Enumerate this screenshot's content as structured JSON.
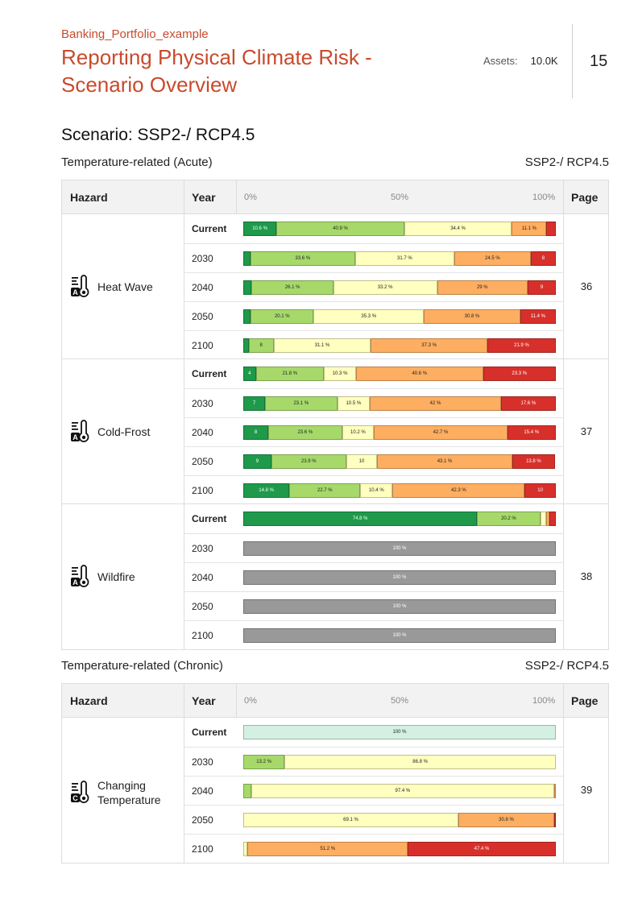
{
  "header": {
    "portfolio": "Banking_Portfolio_example",
    "title": "Reporting Physical Climate Risk - Scenario Overview",
    "assets_label": "Assets:",
    "assets_value": "10.0K",
    "page_number": "15"
  },
  "scenario_title": "Scenario: SSP2-/ RCP4.5",
  "colors": {
    "dg": "#1e9a4a",
    "lg": "#a6d96a",
    "ly": "#ffffbf",
    "or": "#fdae61",
    "rd": "#d7302b",
    "gr": "#999999",
    "mt": "#d4f0e2"
  },
  "columns": {
    "hazard": "Hazard",
    "year": "Year",
    "scale_0": "0%",
    "scale_50": "50%",
    "scale_100": "100%",
    "page": "Page"
  },
  "sections": [
    {
      "title": "Temperature-related (Acute)",
      "scenario": "SSP2-/ RCP4.5",
      "hazards": [
        {
          "name": "Heat Wave",
          "icon": "thermometer-a-icon",
          "page": "36",
          "rows": [
            {
              "year": "Current",
              "segments": [
                {
                  "c": "dg",
                  "v": 10.6,
                  "t": "10.6 %"
                },
                {
                  "c": "lg",
                  "v": 40.9,
                  "t": "40.9 %"
                },
                {
                  "c": "ly",
                  "v": 34.4,
                  "t": "34.4 %"
                },
                {
                  "c": "or",
                  "v": 11.1,
                  "t": "11.1 %"
                },
                {
                  "c": "rd",
                  "v": 3.0,
                  "t": ""
                }
              ]
            },
            {
              "year": "2030",
              "segments": [
                {
                  "c": "dg",
                  "v": 2.2,
                  "t": ""
                },
                {
                  "c": "lg",
                  "v": 33.6,
                  "t": "33.6 %"
                },
                {
                  "c": "ly",
                  "v": 31.7,
                  "t": "31.7 %"
                },
                {
                  "c": "or",
                  "v": 24.5,
                  "t": "24.5 %"
                },
                {
                  "c": "rd",
                  "v": 8.0,
                  "t": "8"
                }
              ]
            },
            {
              "year": "2040",
              "segments": [
                {
                  "c": "dg",
                  "v": 2.7,
                  "t": ""
                },
                {
                  "c": "lg",
                  "v": 26.1,
                  "t": "26.1 %"
                },
                {
                  "c": "ly",
                  "v": 33.2,
                  "t": "33.2 %"
                },
                {
                  "c": "or",
                  "v": 29.0,
                  "t": "29 %"
                },
                {
                  "c": "rd",
                  "v": 9.0,
                  "t": "9"
                }
              ]
            },
            {
              "year": "2050",
              "segments": [
                {
                  "c": "dg",
                  "v": 2.4,
                  "t": ""
                },
                {
                  "c": "lg",
                  "v": 20.1,
                  "t": "20.1 %"
                },
                {
                  "c": "ly",
                  "v": 35.3,
                  "t": "35.3 %"
                },
                {
                  "c": "or",
                  "v": 30.8,
                  "t": "30.8 %"
                },
                {
                  "c": "rd",
                  "v": 11.4,
                  "t": "11.4 %"
                }
              ]
            },
            {
              "year": "2100",
              "segments": [
                {
                  "c": "dg",
                  "v": 1.7,
                  "t": ""
                },
                {
                  "c": "lg",
                  "v": 8.0,
                  "t": "8"
                },
                {
                  "c": "ly",
                  "v": 31.1,
                  "t": "31.1 %"
                },
                {
                  "c": "or",
                  "v": 37.3,
                  "t": "37.3 %"
                },
                {
                  "c": "rd",
                  "v": 21.9,
                  "t": "21.9 %"
                }
              ]
            }
          ]
        },
        {
          "name": "Cold-Frost",
          "icon": "thermometer-a-icon",
          "page": "37",
          "rows": [
            {
              "year": "Current",
              "segments": [
                {
                  "c": "dg",
                  "v": 4.0,
                  "t": "4"
                },
                {
                  "c": "lg",
                  "v": 21.8,
                  "t": "21.8 %"
                },
                {
                  "c": "ly",
                  "v": 10.3,
                  "t": "10.3 %"
                },
                {
                  "c": "or",
                  "v": 40.6,
                  "t": "40.6 %"
                },
                {
                  "c": "rd",
                  "v": 23.3,
                  "t": "23.3 %"
                }
              ]
            },
            {
              "year": "2030",
              "segments": [
                {
                  "c": "dg",
                  "v": 7.0,
                  "t": "7"
                },
                {
                  "c": "lg",
                  "v": 23.1,
                  "t": "23.1 %"
                },
                {
                  "c": "ly",
                  "v": 10.5,
                  "t": "10.5 %"
                },
                {
                  "c": "or",
                  "v": 42.0,
                  "t": "42 %"
                },
                {
                  "c": "rd",
                  "v": 17.6,
                  "t": "17.6 %"
                }
              ]
            },
            {
              "year": "2040",
              "segments": [
                {
                  "c": "dg",
                  "v": 8.0,
                  "t": "8"
                },
                {
                  "c": "lg",
                  "v": 23.6,
                  "t": "23.6 %"
                },
                {
                  "c": "ly",
                  "v": 10.2,
                  "t": "10.2 %"
                },
                {
                  "c": "or",
                  "v": 42.7,
                  "t": "42.7 %"
                },
                {
                  "c": "rd",
                  "v": 15.4,
                  "t": "15.4 %"
                }
              ]
            },
            {
              "year": "2050",
              "segments": [
                {
                  "c": "dg",
                  "v": 9.0,
                  "t": "9"
                },
                {
                  "c": "lg",
                  "v": 23.9,
                  "t": "23.9 %"
                },
                {
                  "c": "ly",
                  "v": 10.0,
                  "t": "10"
                },
                {
                  "c": "or",
                  "v": 43.1,
                  "t": "43.1 %"
                },
                {
                  "c": "rd",
                  "v": 13.8,
                  "t": "13.8 %"
                }
              ]
            },
            {
              "year": "2100",
              "segments": [
                {
                  "c": "dg",
                  "v": 14.8,
                  "t": "14.8 %"
                },
                {
                  "c": "lg",
                  "v": 22.7,
                  "t": "22.7 %"
                },
                {
                  "c": "ly",
                  "v": 10.4,
                  "t": "10.4 %"
                },
                {
                  "c": "or",
                  "v": 42.3,
                  "t": "42.3 %"
                },
                {
                  "c": "rd",
                  "v": 10.0,
                  "t": "10"
                }
              ]
            }
          ]
        },
        {
          "name": "Wildfire",
          "icon": "thermometer-a-icon",
          "page": "38",
          "rows": [
            {
              "year": "Current",
              "segments": [
                {
                  "c": "dg",
                  "v": 74.8,
                  "t": "74.8 %"
                },
                {
                  "c": "lg",
                  "v": 20.2,
                  "t": "20.2 %"
                },
                {
                  "c": "ly",
                  "v": 2.0,
                  "t": ""
                },
                {
                  "c": "or",
                  "v": 1.0,
                  "t": ""
                },
                {
                  "c": "rd",
                  "v": 2.0,
                  "t": ""
                }
              ]
            },
            {
              "year": "2030",
              "segments": [
                {
                  "c": "gr",
                  "v": 100,
                  "t": "100 %"
                }
              ]
            },
            {
              "year": "2040",
              "segments": [
                {
                  "c": "gr",
                  "v": 100,
                  "t": "100 %"
                }
              ]
            },
            {
              "year": "2050",
              "segments": [
                {
                  "c": "gr",
                  "v": 100,
                  "t": "100 %"
                }
              ]
            },
            {
              "year": "2100",
              "segments": [
                {
                  "c": "gr",
                  "v": 100,
                  "t": "100 %"
                }
              ]
            }
          ]
        }
      ]
    },
    {
      "title": "Temperature-related (Chronic)",
      "scenario": "SSP2-/ RCP4.5",
      "hazards": [
        {
          "name": "Changing Temperature",
          "icon": "thermometer-c-icon",
          "page": "39",
          "rows": [
            {
              "year": "Current",
              "segments": [
                {
                  "c": "mt",
                  "v": 100,
                  "t": "100 %"
                }
              ]
            },
            {
              "year": "2030",
              "segments": [
                {
                  "c": "lg",
                  "v": 13.2,
                  "t": "13.2 %"
                },
                {
                  "c": "ly",
                  "v": 86.8,
                  "t": "86.8 %"
                }
              ]
            },
            {
              "year": "2040",
              "segments": [
                {
                  "c": "lg",
                  "v": 2.6,
                  "t": ""
                },
                {
                  "c": "ly",
                  "v": 97.4,
                  "t": "97.4 %"
                },
                {
                  "c": "or",
                  "v": 0.6,
                  "t": ""
                }
              ]
            },
            {
              "year": "2050",
              "segments": [
                {
                  "c": "ly",
                  "v": 69.1,
                  "t": "69.1 %"
                },
                {
                  "c": "or",
                  "v": 30.8,
                  "t": "30.8 %"
                },
                {
                  "c": "rd",
                  "v": 0.3,
                  "t": ""
                }
              ]
            },
            {
              "year": "2100",
              "segments": [
                {
                  "c": "ly",
                  "v": 1.4,
                  "t": ""
                },
                {
                  "c": "or",
                  "v": 51.2,
                  "t": "51.2 %"
                },
                {
                  "c": "rd",
                  "v": 47.4,
                  "t": "47.4 %"
                }
              ]
            }
          ]
        }
      ]
    }
  ]
}
